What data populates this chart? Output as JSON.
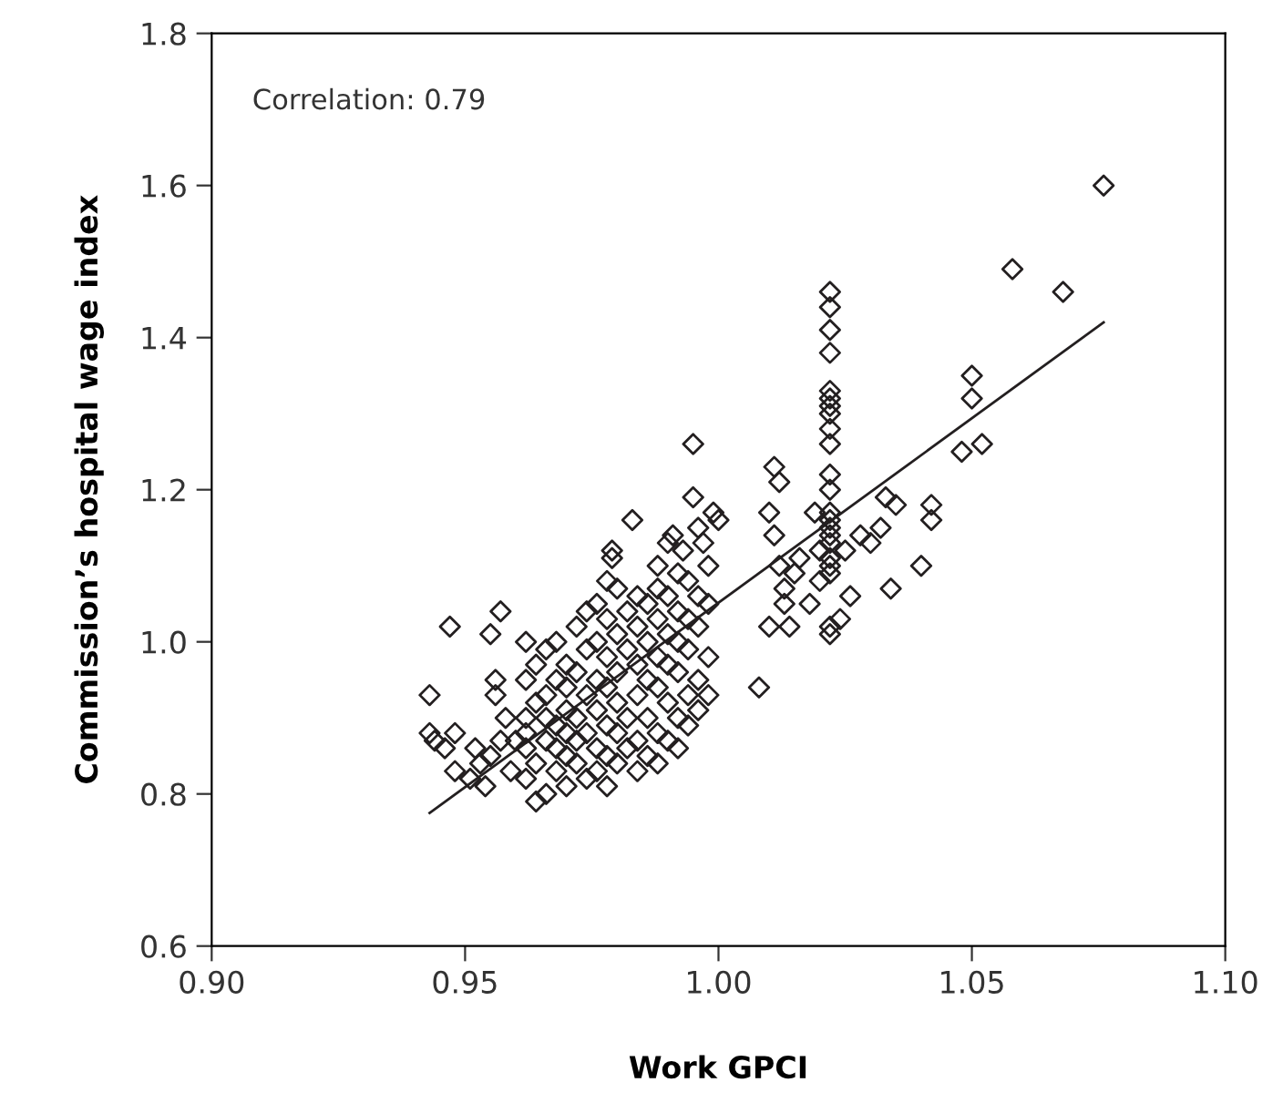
{
  "chart_data": {
    "type": "scatter",
    "xlabel": "Work GPCI",
    "ylabel": "Commission’s hospital wage index",
    "annotations": [
      "Correlation: 0.79"
    ],
    "xlim": [
      0.9,
      1.1
    ],
    "xticks": [
      {
        "value": 0.9,
        "label": "0.90"
      },
      0.95,
      {
        "value": 1.0,
        "label": "1.00"
      },
      1.05,
      {
        "value": 1.1,
        "label": "1.10"
      }
    ],
    "ylim": [
      0.6,
      1.8
    ],
    "yticks": [
      0.6,
      0.8,
      {
        "value": 1.0,
        "label": "1.0"
      },
      1.2,
      1.4,
      1.6,
      1.8
    ],
    "grid": false,
    "series": [
      {
        "marker": "diamond",
        "color": "#231f20",
        "x": [
          0.943,
          0.943,
          0.944,
          0.946,
          0.947,
          0.948,
          0.948,
          0.951,
          0.952,
          0.953,
          0.954,
          0.955,
          0.955,
          0.956,
          0.956,
          0.957,
          0.957,
          0.958,
          0.959,
          0.96,
          0.962,
          0.962,
          0.962,
          0.962,
          0.962,
          0.962,
          0.964,
          0.964,
          0.964,
          0.964,
          0.966,
          0.966,
          0.966,
          0.966,
          0.966,
          0.968,
          0.968,
          0.968,
          0.968,
          0.968,
          0.97,
          0.97,
          0.97,
          0.97,
          0.97,
          0.97,
          0.972,
          0.972,
          0.972,
          0.972,
          0.972,
          0.974,
          0.974,
          0.974,
          0.974,
          0.974,
          0.976,
          0.976,
          0.976,
          0.976,
          0.976,
          0.976,
          0.978,
          0.978,
          0.978,
          0.978,
          0.978,
          0.978,
          0.978,
          0.98,
          0.98,
          0.98,
          0.98,
          0.98,
          0.982,
          0.982,
          0.982,
          0.982,
          0.984,
          0.984,
          0.984,
          0.984,
          0.984,
          0.984,
          0.986,
          0.986,
          0.986,
          0.986,
          0.986,
          0.988,
          0.988,
          0.988,
          0.988,
          0.988,
          0.988,
          0.99,
          0.99,
          0.99,
          0.99,
          0.99,
          0.992,
          0.992,
          0.992,
          0.992,
          0.992,
          0.992,
          0.994,
          0.994,
          0.994,
          0.994,
          0.994,
          0.996,
          0.996,
          0.996,
          0.996,
          0.998,
          0.998,
          0.998,
          0.998,
          0.983,
          0.979,
          0.979,
          0.98,
          0.988,
          0.99,
          0.995,
          0.995,
          0.996,
          0.999,
          1.0,
          0.997,
          0.993,
          0.991,
          1.022,
          1.022,
          1.022,
          1.022,
          1.022,
          1.022,
          1.022,
          1.022,
          1.022,
          1.022,
          1.022,
          1.022,
          1.022,
          1.022,
          1.022,
          1.022,
          1.022,
          1.022,
          1.022,
          1.022,
          1.022,
          1.022,
          1.008,
          1.01,
          1.011,
          1.012,
          1.011,
          1.012,
          1.013,
          1.01,
          1.014,
          1.015,
          1.013,
          1.016,
          1.018,
          1.019,
          1.02,
          1.02,
          1.025,
          1.026,
          1.028,
          1.03,
          1.032,
          1.033,
          1.034,
          1.035,
          1.04,
          1.042,
          1.042,
          1.048,
          1.05,
          1.05,
          1.052,
          1.058,
          1.068,
          1.076,
          1.024
        ],
        "values": [
          0.93,
          0.88,
          0.87,
          0.86,
          1.02,
          0.88,
          0.83,
          0.82,
          0.86,
          0.84,
          0.81,
          0.85,
          1.01,
          0.93,
          0.95,
          1.04,
          0.87,
          0.9,
          0.83,
          0.87,
          0.82,
          0.86,
          0.9,
          0.95,
          0.88,
          1.0,
          0.79,
          0.84,
          0.92,
          0.97,
          0.8,
          0.87,
          0.93,
          0.99,
          0.9,
          0.83,
          0.89,
          0.95,
          1.0,
          0.86,
          0.81,
          0.85,
          0.91,
          0.97,
          0.88,
          0.94,
          0.84,
          0.9,
          0.96,
          1.02,
          0.87,
          0.82,
          0.88,
          0.93,
          0.99,
          1.04,
          0.83,
          0.86,
          0.91,
          0.95,
          1.0,
          1.05,
          0.81,
          0.85,
          0.89,
          0.94,
          0.98,
          1.03,
          1.08,
          0.84,
          0.88,
          0.92,
          0.96,
          1.01,
          0.86,
          0.9,
          0.99,
          1.04,
          0.83,
          0.87,
          0.93,
          0.97,
          1.02,
          1.06,
          0.85,
          0.9,
          0.95,
          1.0,
          1.05,
          0.84,
          0.88,
          0.94,
          0.98,
          1.03,
          1.07,
          0.87,
          0.92,
          0.97,
          1.01,
          1.06,
          0.86,
          0.9,
          0.96,
          1.0,
          1.04,
          1.09,
          0.89,
          0.93,
          0.99,
          1.03,
          1.08,
          0.91,
          0.95,
          1.02,
          1.06,
          0.93,
          0.98,
          1.05,
          1.1,
          1.16,
          1.11,
          1.12,
          1.07,
          1.1,
          1.13,
          1.26,
          1.19,
          1.15,
          1.17,
          1.16,
          1.13,
          1.12,
          1.14,
          1.46,
          1.44,
          1.41,
          1.38,
          1.33,
          1.32,
          1.31,
          1.3,
          1.28,
          1.26,
          1.22,
          1.2,
          1.17,
          1.16,
          1.15,
          1.14,
          1.13,
          1.11,
          1.1,
          1.09,
          1.02,
          1.01,
          0.94,
          1.17,
          1.23,
          1.21,
          1.14,
          1.1,
          1.05,
          1.02,
          1.02,
          1.09,
          1.07,
          1.11,
          1.05,
          1.17,
          1.08,
          1.12,
          1.12,
          1.06,
          1.14,
          1.13,
          1.15,
          1.19,
          1.07,
          1.18,
          1.1,
          1.18,
          1.16,
          1.25,
          1.35,
          1.32,
          1.26,
          1.49,
          1.46,
          1.6,
          1.03
        ]
      },
      {
        "type": "line",
        "color": "#231f20",
        "marker": "none",
        "line_style": "solid",
        "x": [
          0.943,
          1.076
        ],
        "values": [
          0.775,
          1.42
        ]
      }
    ]
  }
}
